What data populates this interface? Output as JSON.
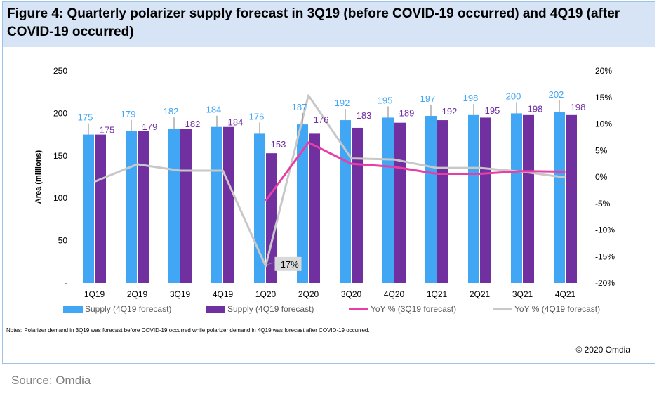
{
  "figure": {
    "title": "Figure 4: Quarterly polarizer supply forecast in 3Q19 (before COVID-19 occurred) and 4Q19 (after COVID-19 occurred)",
    "notes": "Notes: Polarizer demand in 3Q19 was forecast before COVID-19 occurred while polarizer demand in 4Q19 was forecast after COVID-19 occurred.",
    "copyright": "© 2020 Omdia",
    "source": "Source: Omdia"
  },
  "chart_data": {
    "type": "bar+line",
    "ylabel": "Area (millions)",
    "ylim": [
      0,
      250
    ],
    "y_ticks": [
      "-",
      "50",
      "100",
      "150",
      "200",
      "250"
    ],
    "y2lim": [
      -20,
      20
    ],
    "y2_ticks": [
      "-20%",
      "-15%",
      "-10%",
      "-5%",
      "0%",
      "5%",
      "10%",
      "15%",
      "20%"
    ],
    "categories": [
      "1Q19",
      "2Q19",
      "3Q19",
      "4Q19",
      "1Q20",
      "2Q20",
      "3Q20",
      "4Q20",
      "1Q21",
      "2Q21",
      "3Q21",
      "4Q21"
    ],
    "series": [
      {
        "name": "Supply (4Q19 forecast)",
        "kind": "bar",
        "axis": "left",
        "color": "#41a6f4",
        "values": [
          175,
          179,
          182,
          184,
          176,
          187,
          192,
          195,
          197,
          198,
          200,
          202
        ]
      },
      {
        "name": "Supply (4Q19 forecast)",
        "kind": "bar",
        "axis": "left",
        "color": "#7030a0",
        "values": [
          175,
          179,
          182,
          184,
          153,
          176,
          183,
          189,
          192,
          195,
          198,
          198
        ]
      },
      {
        "name": "YoY % (3Q19 forecast)",
        "kind": "line",
        "axis": "right",
        "color": "#e83fa6",
        "values": [
          null,
          null,
          null,
          null,
          -4.5,
          6.5,
          2.5,
          1.9,
          0.6,
          0.6,
          1.1,
          1.0
        ]
      },
      {
        "name": "YoY % (4Q19 forecast)",
        "kind": "line",
        "axis": "right",
        "color": "#c8c8c8",
        "values": [
          -0.9,
          2.4,
          1.2,
          1.2,
          -16.8,
          15.4,
          3.5,
          3.3,
          1.7,
          1.7,
          1.0,
          -0.1
        ]
      }
    ],
    "annotations": [
      {
        "text": "-17%",
        "category": "1Q20",
        "series": 3
      }
    ],
    "colors": {
      "label_blue": "#41a6f4",
      "label_purple": "#7030a0",
      "axis_text": "#000000"
    }
  }
}
